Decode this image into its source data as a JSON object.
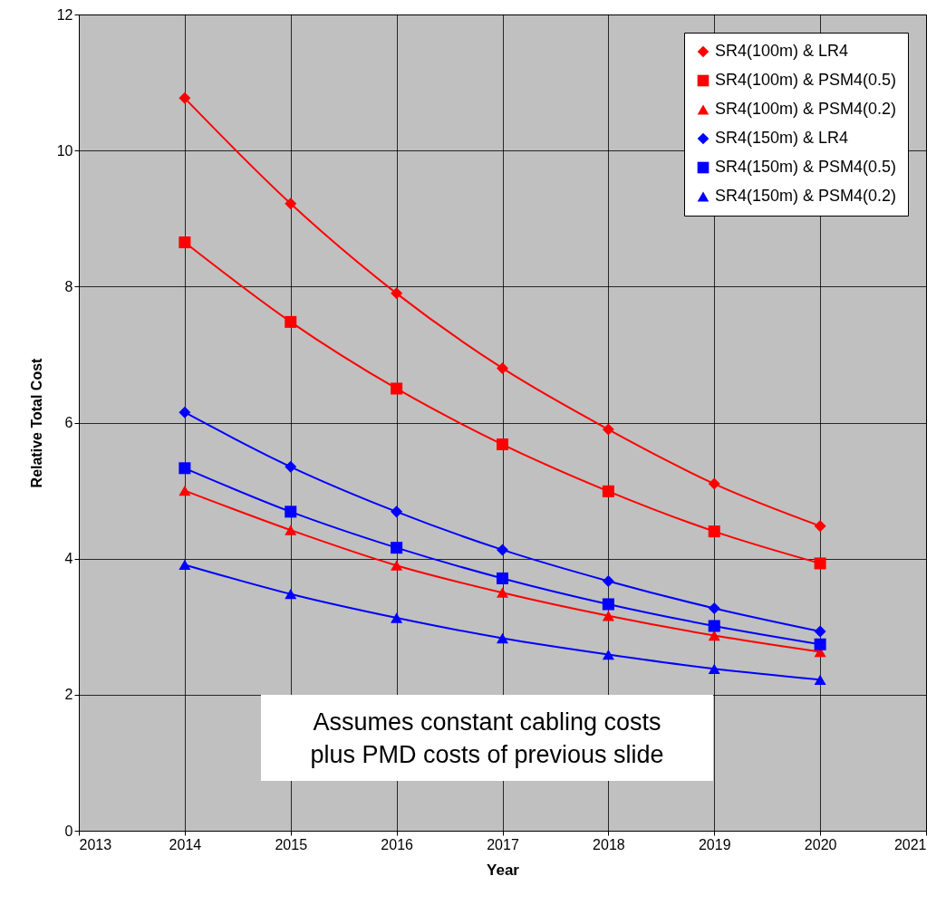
{
  "chart_data": {
    "type": "line",
    "xlabel": "Year",
    "ylabel": "Relative Total Cost",
    "x": [
      2014,
      2015,
      2016,
      2017,
      2018,
      2019,
      2020
    ],
    "series": [
      {
        "name": "SR4(100m) & LR4",
        "color": "#ff0000",
        "marker": "diamond",
        "values": [
          10.77,
          9.22,
          7.9,
          6.8,
          5.9,
          5.1,
          4.48
        ]
      },
      {
        "name": "SR4(100m) & PSM4(0.5)",
        "color": "#ff0000",
        "marker": "square",
        "values": [
          8.65,
          7.48,
          6.5,
          5.68,
          4.99,
          4.4,
          3.93
        ]
      },
      {
        "name": "SR4(100m) & PSM4(0.2)",
        "color": "#ff0000",
        "marker": "triangle",
        "values": [
          5.0,
          4.42,
          3.9,
          3.5,
          3.16,
          2.87,
          2.63
        ]
      },
      {
        "name": "SR4(150m) & LR4",
        "color": "#0000ff",
        "marker": "diamond",
        "values": [
          6.15,
          5.35,
          4.69,
          4.13,
          3.67,
          3.27,
          2.93
        ]
      },
      {
        "name": "SR4(150m) & PSM4(0.5)",
        "color": "#0000ff",
        "marker": "square",
        "values": [
          5.33,
          4.69,
          4.16,
          3.71,
          3.33,
          3.01,
          2.74
        ]
      },
      {
        "name": "SR4(150m) & PSM4(0.2)",
        "color": "#0000ff",
        "marker": "triangle",
        "values": [
          3.91,
          3.48,
          3.13,
          2.83,
          2.59,
          2.38,
          2.22
        ]
      }
    ],
    "xlim": [
      2013,
      2021
    ],
    "xticks": [
      2013,
      2014,
      2015,
      2016,
      2017,
      2018,
      2019,
      2020,
      2021
    ],
    "ylim": [
      0,
      12
    ],
    "yticks": [
      0,
      2,
      4,
      6,
      8,
      10,
      12
    ],
    "grid": true,
    "legend": "top right",
    "annotations": [
      "Assumes constant cabling costs\nplus PMD costs of previous slide"
    ]
  }
}
